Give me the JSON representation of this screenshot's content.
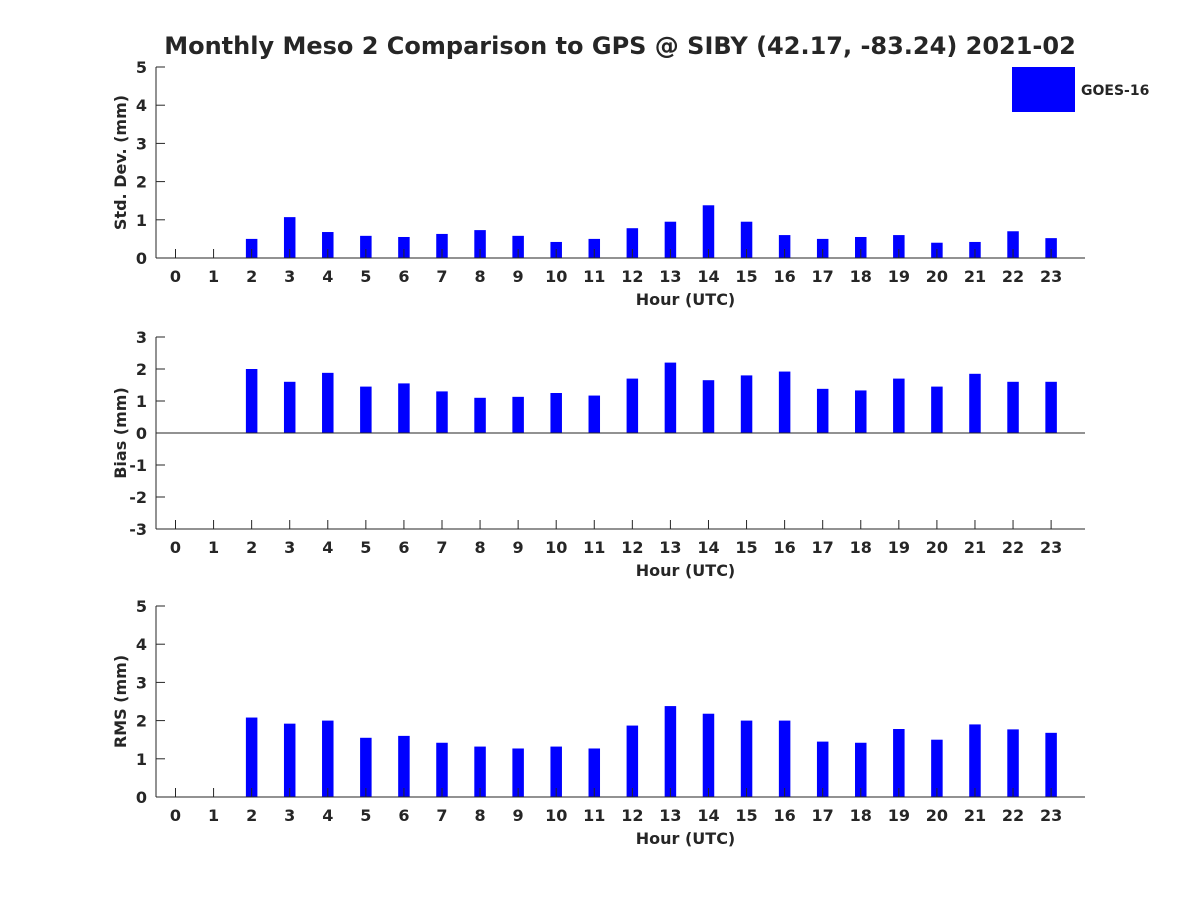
{
  "chart_data": {
    "type": "bar",
    "title": "Monthly Meso 2 Comparison to GPS @ SIBY (42.17, -83.24) 2021-02",
    "legend": {
      "labels": [
        "GOES-16"
      ],
      "colors": [
        "#0000ff"
      ],
      "placement": "top-right"
    },
    "categories": [
      "0",
      "1",
      "2",
      "3",
      "4",
      "5",
      "6",
      "7",
      "8",
      "9",
      "10",
      "11",
      "12",
      "13",
      "14",
      "15",
      "16",
      "17",
      "18",
      "19",
      "20",
      "21",
      "22",
      "23"
    ],
    "panels": [
      {
        "ylabel": "Std. Dev. (mm)",
        "xlabel": "Hour (UTC)",
        "ylim": [
          0,
          5
        ],
        "yticks": [
          "0",
          "1",
          "2",
          "3",
          "4",
          "5"
        ],
        "series": [
          {
            "name": "GOES-16",
            "color": "#0000ff",
            "values": [
              null,
              null,
              0.5,
              1.07,
              0.68,
              0.58,
              0.55,
              0.63,
              0.73,
              0.58,
              0.42,
              0.5,
              0.78,
              0.95,
              1.38,
              0.95,
              0.6,
              0.5,
              0.55,
              0.6,
              0.4,
              0.42,
              0.7,
              0.52
            ]
          }
        ]
      },
      {
        "ylabel": "Bias (mm)",
        "xlabel": "Hour (UTC)",
        "ylim": [
          -3,
          3
        ],
        "yticks": [
          "-3",
          "-2",
          "-1",
          "0",
          "1",
          "2",
          "3"
        ],
        "series": [
          {
            "name": "GOES-16",
            "color": "#0000ff",
            "values": [
              null,
              null,
              2.0,
              1.6,
              1.88,
              1.45,
              1.55,
              1.3,
              1.1,
              1.13,
              1.25,
              1.17,
              1.7,
              2.2,
              1.65,
              1.8,
              1.92,
              1.38,
              1.33,
              1.7,
              1.45,
              1.85,
              1.6,
              1.6
            ]
          }
        ]
      },
      {
        "ylabel": "RMS (mm)",
        "xlabel": "Hour (UTC)",
        "ylim": [
          0,
          5
        ],
        "yticks": [
          "0",
          "1",
          "2",
          "3",
          "4",
          "5"
        ],
        "series": [
          {
            "name": "GOES-16",
            "color": "#0000ff",
            "values": [
              null,
              null,
              2.08,
              1.92,
              2.0,
              1.55,
              1.6,
              1.42,
              1.32,
              1.27,
              1.32,
              1.27,
              1.87,
              2.38,
              2.18,
              2.0,
              2.0,
              1.45,
              1.42,
              1.78,
              1.5,
              1.9,
              1.77,
              1.68
            ]
          }
        ]
      }
    ]
  }
}
